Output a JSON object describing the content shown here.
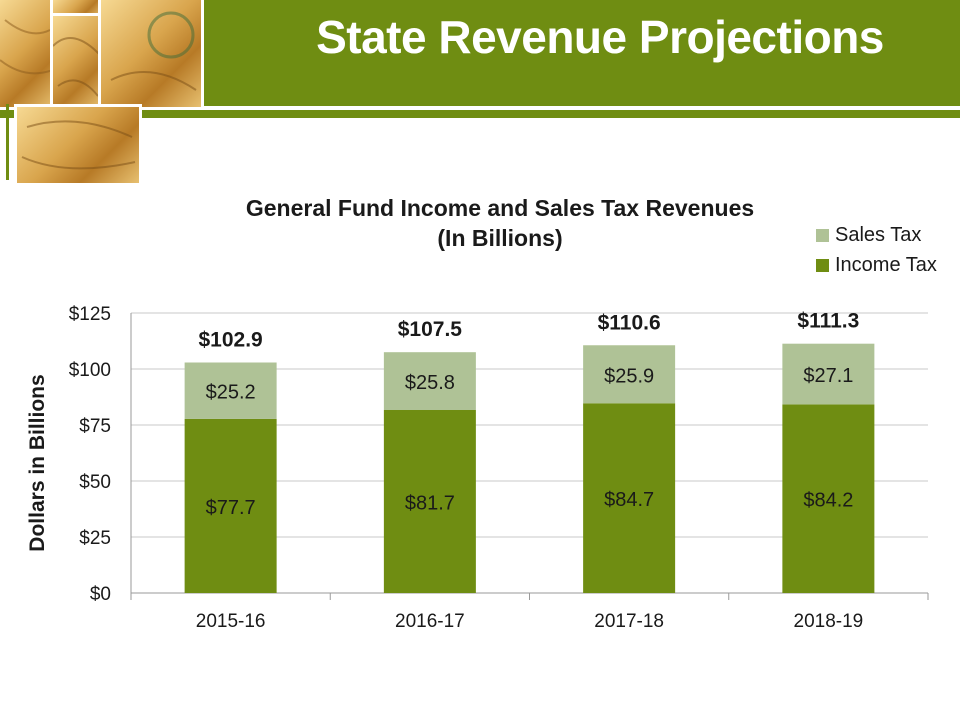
{
  "slide": {
    "title": "State Revenue Projections",
    "accent_color": "#6f8d12"
  },
  "chart_data": {
    "type": "bar",
    "stacked": true,
    "title": "General Fund Income and Sales Tax Revenues\n(In Billions)",
    "title_line1": "General Fund Income and Sales Tax Revenues",
    "title_line2": "(In Billions)",
    "xlabel": "",
    "ylabel": "Dollars in Billions",
    "ylim": [
      0,
      125
    ],
    "yticks": [
      0,
      25,
      50,
      75,
      100,
      125
    ],
    "ytick_labels": [
      "$0",
      "$25",
      "$50",
      "$75",
      "$100",
      "$125"
    ],
    "categories": [
      "2015-16",
      "2016-17",
      "2017-18",
      "2018-19"
    ],
    "series": [
      {
        "name": "Income Tax",
        "values": [
          77.7,
          81.7,
          84.7,
          84.2
        ],
        "labels": [
          "$77.7",
          "$81.7",
          "$84.7",
          "$84.2"
        ],
        "color": "#6f8d12"
      },
      {
        "name": "Sales Tax",
        "values": [
          25.2,
          25.8,
          25.9,
          27.1
        ],
        "labels": [
          "$25.2",
          "$25.8",
          "$25.9",
          "$27.1"
        ],
        "color": "#afc296"
      }
    ],
    "totals": [
      102.9,
      107.5,
      110.6,
      111.3
    ],
    "total_labels": [
      "$102.9",
      "$107.5",
      "$110.6",
      "$111.3"
    ],
    "legend_position": "top-right",
    "legend": [
      "Sales Tax",
      "Income Tax"
    ],
    "grid": true
  }
}
